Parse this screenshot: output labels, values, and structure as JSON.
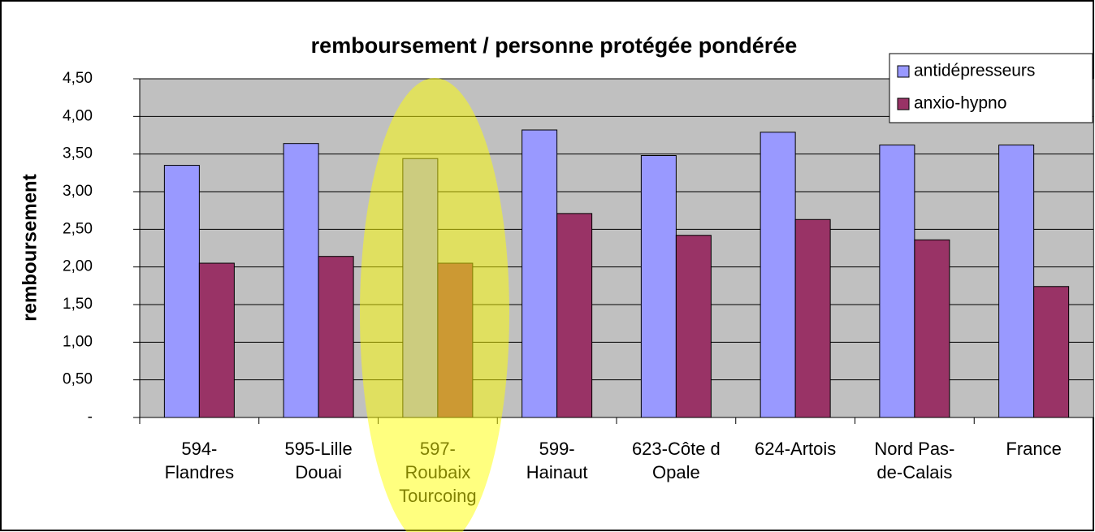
{
  "chart_data": {
    "type": "bar",
    "title": "remboursement / personne protégée pondérée",
    "y_label": "remboursement",
    "categories": [
      "594-\nFlandres",
      "595-Lille\nDouai",
      "597-\nRoubaix\nTourcoing",
      "599-\nHainaut",
      "623-Côte d\nOpale",
      "624-Artois",
      "Nord Pas-\nde-Calais",
      "France"
    ],
    "series": [
      {
        "name": "antidépresseurs",
        "color": "#9999ff",
        "values": [
          3.35,
          3.64,
          3.44,
          3.82,
          3.48,
          3.79,
          3.62,
          3.62
        ]
      },
      {
        "name": "anxio-hypno",
        "color": "#993366",
        "values": [
          2.05,
          2.14,
          2.05,
          2.71,
          2.42,
          2.63,
          2.36,
          1.74
        ]
      }
    ],
    "ylim": [
      0,
      4.5
    ],
    "yticks": [
      {
        "value": 0,
        "label": "-"
      },
      {
        "value": 0.5,
        "label": "0,50"
      },
      {
        "value": 1,
        "label": "1,00"
      },
      {
        "value": 1.5,
        "label": "1,50"
      },
      {
        "value": 2,
        "label": "2,00"
      },
      {
        "value": 2.5,
        "label": "2,50"
      },
      {
        "value": 3,
        "label": "3,00"
      },
      {
        "value": 3.5,
        "label": "3,50"
      },
      {
        "value": 4,
        "label": "4,00"
      },
      {
        "value": 4.5,
        "label": "4,50"
      }
    ],
    "grid": true,
    "legend": "top-right"
  }
}
